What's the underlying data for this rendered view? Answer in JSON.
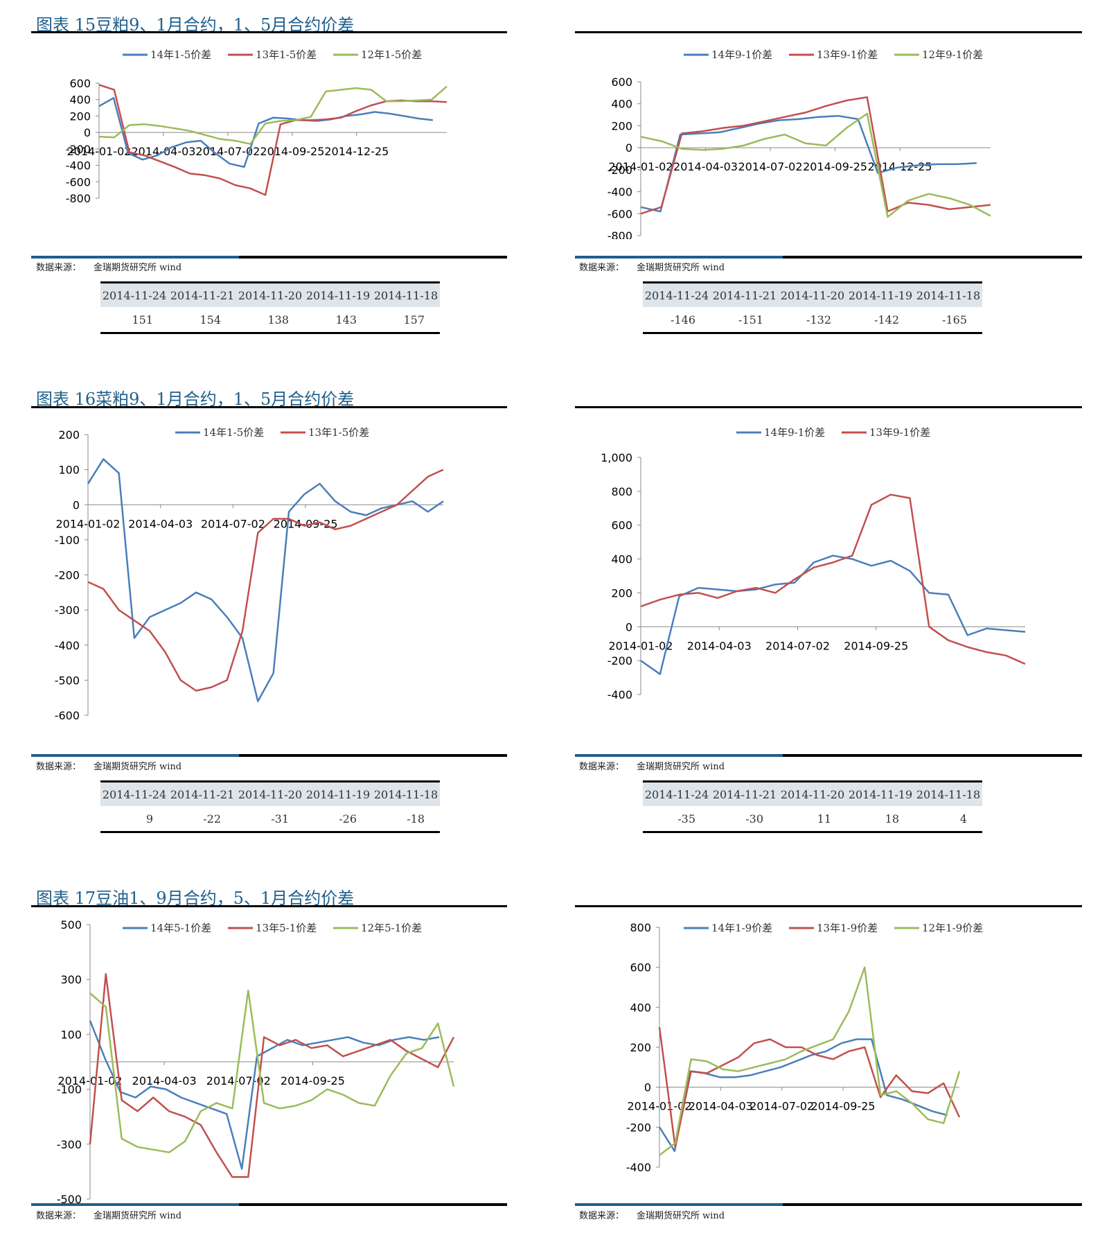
{
  "sections": [
    {
      "heading": "图表 15豆粕9、1月合约，1、5月合约价差"
    },
    {
      "heading": "图表 16菜粕9、1月合约，1、5月合约价差"
    },
    {
      "heading": "图表 17豆油1、9月合约，5、1月合约价差"
    }
  ],
  "source_label": "数据来源：",
  "source_text": "金瑞期货研究所 wind",
  "tables": [
    {
      "headers": [
        "2014-11-24",
        "2014-11-21",
        "2014-11-20",
        "2014-11-19",
        "2014-11-18"
      ],
      "values": [
        "151",
        "154",
        "138",
        "143",
        "157"
      ]
    },
    {
      "headers": [
        "2014-11-24",
        "2014-11-21",
        "2014-11-20",
        "2014-11-19",
        "2014-11-18"
      ],
      "values": [
        "-146",
        "-151",
        "-132",
        "-142",
        "-165"
      ]
    },
    {
      "headers": [
        "2014-11-24",
        "2014-11-21",
        "2014-11-20",
        "2014-11-19",
        "2014-11-18"
      ],
      "values": [
        "9",
        "-22",
        "-31",
        "-26",
        "-18"
      ]
    },
    {
      "headers": [
        "2014-11-24",
        "2014-11-21",
        "2014-11-20",
        "2014-11-19",
        "2014-11-18"
      ],
      "values": [
        "-35",
        "-30",
        "11",
        "18",
        "4"
      ]
    }
  ],
  "colors": {
    "blue": "#4a7ebb",
    "red": "#c0504d",
    "green": "#9bbb59",
    "heading": "#1f5f8b"
  },
  "chart_data": [
    {
      "type": "line",
      "ylim": [
        -800,
        600
      ],
      "yticks": [
        "600",
        "400",
        "200",
        "0",
        "-200",
        "-400",
        "-600",
        "-800"
      ],
      "xticks": [
        "2014-01-02",
        "2014-04-03",
        "2014-07-02",
        "2014-09-25",
        "2014-12-25"
      ],
      "legend_position": "top",
      "series": [
        {
          "name": "14年1-5价差",
          "color": "blue",
          "values": [
            320,
            420,
            -250,
            -330,
            -280,
            -180,
            -120,
            -100,
            -250,
            -380,
            -420,
            110,
            180,
            170,
            150,
            140,
            160,
            200,
            220,
            250,
            230,
            200,
            170,
            150
          ]
        },
        {
          "name": "13年1-5价差",
          "color": "red",
          "values": [
            580,
            520,
            -240,
            -280,
            -350,
            -420,
            -500,
            -520,
            -560,
            -640,
            -680,
            -760,
            100,
            150,
            150,
            160,
            180,
            260,
            330,
            380,
            390,
            380,
            380,
            370
          ]
        },
        {
          "name": "12年1-5价差",
          "color": "green",
          "values": [
            -50,
            -60,
            90,
            100,
            80,
            50,
            20,
            -30,
            -80,
            -100,
            -140,
            110,
            140,
            150,
            190,
            500,
            520,
            540,
            520,
            380,
            380,
            390,
            400,
            560
          ]
        }
      ]
    },
    {
      "type": "line",
      "ylim": [
        -800,
        600
      ],
      "yticks": [
        "600",
        "400",
        "200",
        "0",
        "-200",
        "-400",
        "-600",
        "-800"
      ],
      "xticks": [
        "2014-01-02",
        "2014-04-03",
        "2014-07-02",
        "2014-09-25",
        "2014-12-25"
      ],
      "legend_position": "top",
      "series": [
        {
          "name": "14年9-1价差",
          "color": "blue",
          "values": [
            -540,
            -580,
            120,
            130,
            140,
            180,
            220,
            250,
            260,
            280,
            290,
            260,
            -230,
            -180,
            -160,
            -150,
            -150,
            -140
          ]
        },
        {
          "name": "13年9-1价差",
          "color": "red",
          "values": [
            -600,
            -540,
            130,
            150,
            180,
            200,
            240,
            280,
            320,
            380,
            430,
            460,
            -580,
            -500,
            -520,
            -560,
            -540,
            -520
          ]
        },
        {
          "name": "12年9-1价差",
          "color": "green",
          "values": [
            100,
            60,
            -10,
            -20,
            -10,
            20,
            80,
            120,
            40,
            20,
            180,
            310,
            -630,
            -480,
            -420,
            -460,
            -520,
            -620
          ]
        }
      ]
    },
    {
      "type": "line",
      "ylim": [
        -600,
        200
      ],
      "yticks": [
        "200",
        "100",
        "0",
        "-100",
        "-200",
        "-300",
        "-400",
        "-500",
        "-600"
      ],
      "xticks": [
        "2014-01-02",
        "2014-04-03",
        "2014-07-02",
        "2014-09-25"
      ],
      "legend_position": "top",
      "series": [
        {
          "name": "14年1-5价差",
          "color": "blue",
          "values": [
            60,
            130,
            90,
            -380,
            -320,
            -300,
            -280,
            -250,
            -270,
            -320,
            -380,
            -560,
            -480,
            -20,
            30,
            60,
            10,
            -20,
            -30,
            -10,
            0,
            10,
            -20,
            10
          ]
        },
        {
          "name": "13年1-5价差",
          "color": "red",
          "values": [
            -220,
            -240,
            -300,
            -330,
            -360,
            -420,
            -500,
            -530,
            -520,
            -500,
            -360,
            -80,
            -40,
            -40,
            -60,
            -50,
            -70,
            -60,
            -40,
            -20,
            0,
            40,
            80,
            100
          ]
        }
      ]
    },
    {
      "type": "line",
      "ylim": [
        -400,
        1000
      ],
      "yticks": [
        "1,000",
        "800",
        "600",
        "400",
        "200",
        "0",
        "-200",
        "-400"
      ],
      "xticks": [
        "2014-01-02",
        "2014-04-03",
        "2014-07-02",
        "2014-09-25"
      ],
      "legend_position": "top",
      "series": [
        {
          "name": "14年9-1价差",
          "color": "blue",
          "values": [
            -200,
            -280,
            180,
            230,
            220,
            210,
            220,
            250,
            260,
            380,
            420,
            400,
            360,
            390,
            330,
            200,
            190,
            -50,
            -10,
            -20,
            -30
          ]
        },
        {
          "name": "13年9-1价差",
          "color": "red",
          "values": [
            120,
            160,
            190,
            200,
            170,
            210,
            230,
            200,
            280,
            350,
            380,
            420,
            720,
            780,
            760,
            0,
            -80,
            -120,
            -150,
            -170,
            -220
          ]
        }
      ]
    },
    {
      "type": "line",
      "ylim": [
        -500,
        500
      ],
      "yticks": [
        "500",
        "300",
        "100",
        "-100",
        "-300",
        "-500"
      ],
      "xticks": [
        "2014-01-02",
        "2014-04-03",
        "2014-07-02",
        "2014-09-25"
      ],
      "legend_position": "top",
      "series": [
        {
          "name": "14年5-1价差",
          "color": "blue",
          "values": [
            150,
            10,
            -110,
            -130,
            -90,
            -100,
            -130,
            -150,
            -170,
            -190,
            -390,
            20,
            50,
            80,
            60,
            70,
            80,
            90,
            70,
            60,
            80,
            90,
            80,
            90
          ]
        },
        {
          "name": "13年5-1价差",
          "color": "red",
          "values": [
            -300,
            320,
            -140,
            -180,
            -130,
            -180,
            -200,
            -230,
            -330,
            -420,
            -420,
            90,
            60,
            80,
            50,
            60,
            20,
            40,
            60,
            80,
            40,
            10,
            -20,
            90
          ]
        },
        {
          "name": "12年5-1价差",
          "color": "green",
          "values": [
            250,
            200,
            -280,
            -310,
            -320,
            -330,
            -290,
            -180,
            -150,
            -170,
            260,
            -150,
            -170,
            -160,
            -140,
            -100,
            -120,
            -150,
            -160,
            -50,
            30,
            50,
            140,
            -90
          ]
        }
      ]
    },
    {
      "type": "line",
      "ylim": [
        -400,
        800
      ],
      "yticks": [
        "800",
        "600",
        "400",
        "200",
        "0",
        "-200",
        "-400"
      ],
      "xticks": [
        "2014-01-02",
        "2014-04-03",
        "2014-07-02",
        "2014-09-25"
      ],
      "legend_position": "top",
      "series": [
        {
          "name": "14年1-9价差",
          "color": "blue",
          "values": [
            -200,
            -320,
            80,
            70,
            50,
            50,
            60,
            80,
            100,
            130,
            160,
            180,
            220,
            240,
            240,
            -40,
            -60,
            -90,
            -120,
            -140
          ]
        },
        {
          "name": "13年1-9价差",
          "color": "red",
          "values": [
            300,
            -300,
            80,
            70,
            110,
            150,
            220,
            240,
            200,
            200,
            160,
            140,
            180,
            200,
            -50,
            60,
            -20,
            -30,
            20,
            -150
          ]
        },
        {
          "name": "12年1-9价差",
          "color": "green",
          "values": [
            -340,
            -280,
            140,
            130,
            90,
            80,
            100,
            120,
            140,
            180,
            210,
            240,
            380,
            600,
            -40,
            -20,
            -80,
            -160,
            -180,
            80
          ]
        }
      ]
    }
  ]
}
